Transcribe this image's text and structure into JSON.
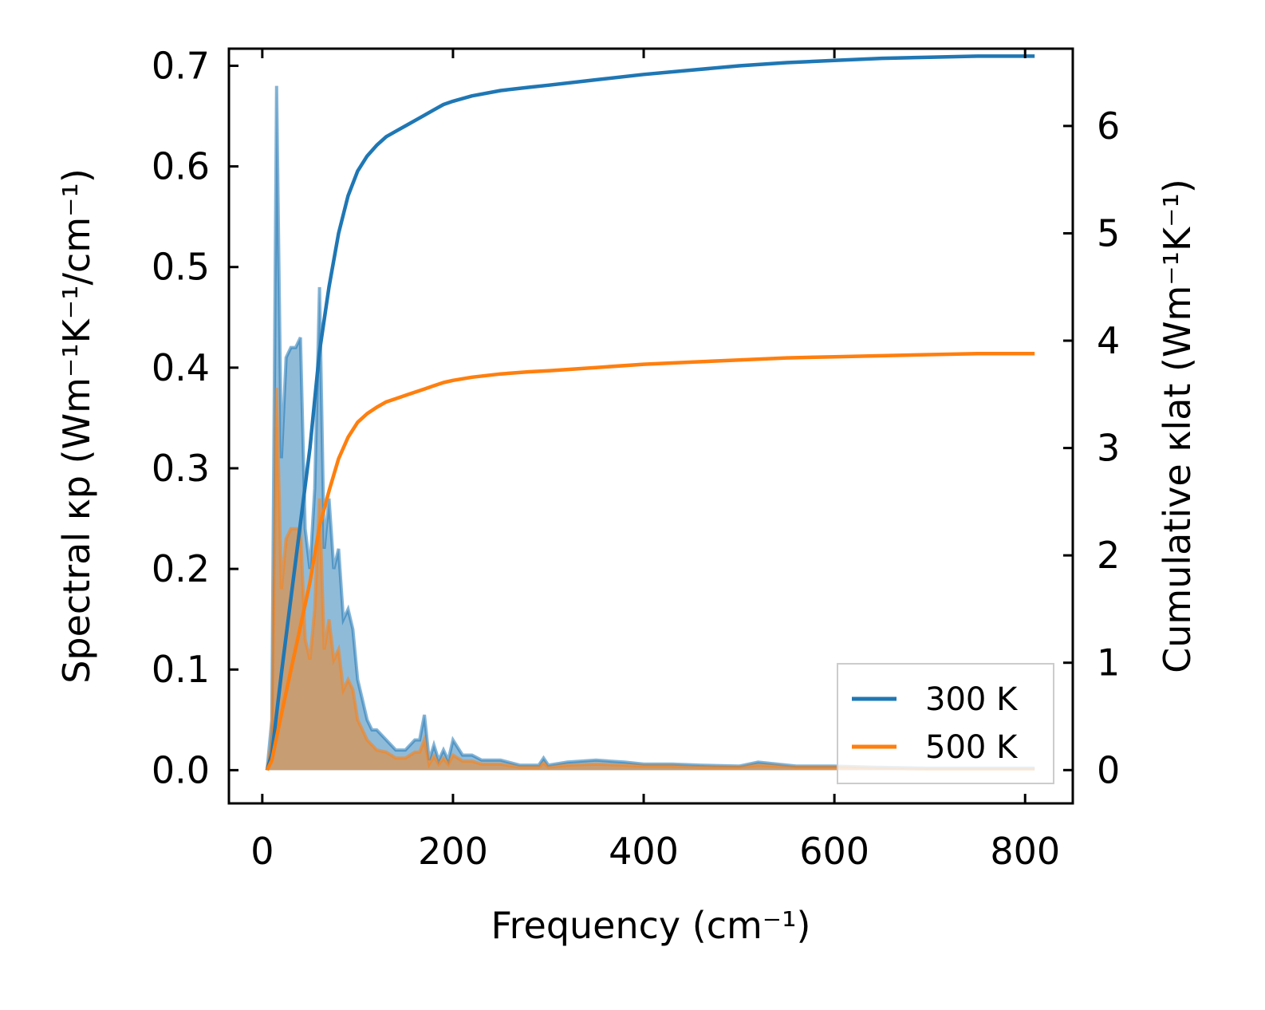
{
  "chart_data": {
    "type": "line",
    "xlabel": "Frequency (cm⁻¹)",
    "ylabel_left": "Spectral κp (Wm⁻¹K⁻¹/cm⁻¹)",
    "ylabel_right": "Cumulative κlat (Wm⁻¹K⁻¹)",
    "xlim": [
      -35,
      850
    ],
    "ylim_left": [
      -0.033,
      0.717
    ],
    "ylim_right": [
      -0.31,
      6.72
    ],
    "x_ticks": [
      0,
      200,
      400,
      600,
      800
    ],
    "y_ticks_left": [
      0.0,
      0.1,
      0.2,
      0.3,
      0.4,
      0.5,
      0.6,
      0.7
    ],
    "y_ticks_right": [
      0,
      1,
      2,
      3,
      4,
      5,
      6
    ],
    "x_tick_labels": [
      "0",
      "200",
      "400",
      "600",
      "800"
    ],
    "y_tick_labels_left": [
      "0.0",
      "0.1",
      "0.2",
      "0.3",
      "0.4",
      "0.5",
      "0.6",
      "0.7"
    ],
    "y_tick_labels_right": [
      "0",
      "1",
      "2",
      "3",
      "4",
      "5",
      "6"
    ],
    "legend": {
      "position": "lower-right",
      "entries": [
        {
          "label": "300 K",
          "color": "#1f77b4"
        },
        {
          "label": "500 K",
          "color": "#ff7f0e"
        }
      ]
    },
    "spectral": [
      {
        "name": "300 K",
        "color": "#1f77b4",
        "x": [
          5,
          10,
          15,
          20,
          25,
          30,
          35,
          40,
          45,
          50,
          55,
          60,
          65,
          70,
          75,
          80,
          85,
          90,
          95,
          100,
          105,
          110,
          115,
          120,
          130,
          140,
          150,
          160,
          165,
          170,
          175,
          180,
          185,
          190,
          195,
          200,
          210,
          220,
          230,
          250,
          270,
          290,
          295,
          300,
          320,
          350,
          380,
          400,
          430,
          460,
          500,
          520,
          560,
          600,
          640,
          700,
          760,
          810
        ],
        "y": [
          0.0,
          0.05,
          0.68,
          0.31,
          0.41,
          0.42,
          0.42,
          0.43,
          0.24,
          0.2,
          0.28,
          0.48,
          0.22,
          0.27,
          0.2,
          0.22,
          0.15,
          0.16,
          0.14,
          0.09,
          0.07,
          0.05,
          0.04,
          0.04,
          0.03,
          0.02,
          0.02,
          0.03,
          0.03,
          0.055,
          0.01,
          0.025,
          0.01,
          0.02,
          0.01,
          0.03,
          0.015,
          0.015,
          0.01,
          0.01,
          0.005,
          0.005,
          0.012,
          0.005,
          0.008,
          0.01,
          0.008,
          0.006,
          0.006,
          0.005,
          0.004,
          0.008,
          0.004,
          0.004,
          0.003,
          0.002,
          0.002,
          0.002
        ]
      },
      {
        "name": "500 K",
        "color": "#ff7f0e",
        "x": [
          5,
          10,
          15,
          20,
          25,
          30,
          35,
          40,
          45,
          50,
          55,
          60,
          65,
          70,
          75,
          80,
          85,
          90,
          95,
          100,
          105,
          110,
          115,
          120,
          130,
          140,
          150,
          160,
          165,
          170,
          175,
          180,
          185,
          190,
          195,
          200,
          210,
          220,
          230,
          250,
          270,
          290,
          295,
          300,
          320,
          350,
          380,
          400,
          430,
          460,
          500,
          520,
          560,
          600,
          640,
          700,
          760,
          810
        ],
        "y": [
          0.0,
          0.03,
          0.38,
          0.18,
          0.23,
          0.24,
          0.24,
          0.24,
          0.13,
          0.11,
          0.16,
          0.27,
          0.12,
          0.15,
          0.11,
          0.12,
          0.08,
          0.09,
          0.08,
          0.05,
          0.04,
          0.03,
          0.025,
          0.02,
          0.018,
          0.012,
          0.012,
          0.018,
          0.018,
          0.03,
          0.006,
          0.014,
          0.006,
          0.012,
          0.006,
          0.015,
          0.009,
          0.009,
          0.006,
          0.006,
          0.003,
          0.003,
          0.007,
          0.003,
          0.005,
          0.006,
          0.005,
          0.004,
          0.004,
          0.003,
          0.003,
          0.005,
          0.003,
          0.003,
          0.002,
          0.001,
          0.001,
          0.001
        ]
      }
    ],
    "cumulative": [
      {
        "name": "300 K",
        "color": "#1f77b4",
        "x": [
          5,
          10,
          20,
          30,
          40,
          50,
          60,
          70,
          80,
          90,
          100,
          110,
          120,
          130,
          140,
          150,
          160,
          170,
          180,
          190,
          200,
          220,
          250,
          280,
          300,
          350,
          400,
          450,
          500,
          550,
          600,
          650,
          700,
          750,
          810
        ],
        "y": [
          0.0,
          0.15,
          0.9,
          1.6,
          2.3,
          3.0,
          3.9,
          4.5,
          5.0,
          5.35,
          5.58,
          5.72,
          5.82,
          5.9,
          5.95,
          6.0,
          6.05,
          6.1,
          6.15,
          6.2,
          6.23,
          6.28,
          6.33,
          6.36,
          6.38,
          6.43,
          6.48,
          6.52,
          6.56,
          6.59,
          6.61,
          6.63,
          6.64,
          6.65,
          6.65
        ]
      },
      {
        "name": "500 K",
        "color": "#ff7f0e",
        "x": [
          5,
          10,
          20,
          30,
          40,
          50,
          60,
          70,
          80,
          90,
          100,
          110,
          120,
          130,
          140,
          150,
          160,
          170,
          180,
          190,
          200,
          220,
          250,
          280,
          300,
          350,
          400,
          450,
          500,
          550,
          600,
          650,
          700,
          750,
          810
        ],
        "y": [
          0.0,
          0.09,
          0.52,
          0.93,
          1.34,
          1.75,
          2.27,
          2.6,
          2.9,
          3.1,
          3.24,
          3.32,
          3.38,
          3.43,
          3.46,
          3.49,
          3.52,
          3.55,
          3.58,
          3.61,
          3.63,
          3.66,
          3.69,
          3.71,
          3.72,
          3.75,
          3.78,
          3.8,
          3.82,
          3.84,
          3.85,
          3.86,
          3.87,
          3.88,
          3.88
        ]
      }
    ]
  }
}
